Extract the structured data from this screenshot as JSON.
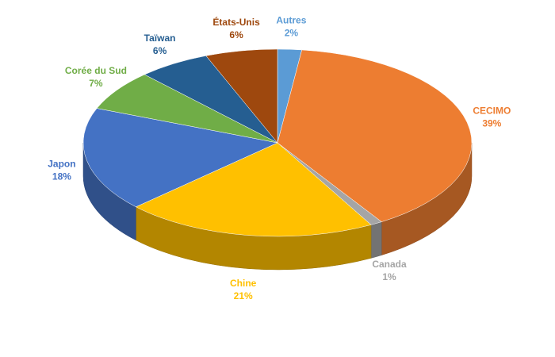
{
  "chart_data": {
    "type": "pie",
    "categories": [
      "Autres",
      "CECIMO",
      "Canada",
      "Chine",
      "Japon",
      "Corée du Sud",
      "Taïwan",
      "États-Unis"
    ],
    "values": [
      2,
      39,
      1,
      21,
      18,
      7,
      6,
      6
    ],
    "value_labels": [
      "2%",
      "39%",
      "1%",
      "21%",
      "18%",
      "7%",
      "6%",
      "6%"
    ],
    "colors": [
      "#5b9bd5",
      "#ed7d31",
      "#a5a5a5",
      "#ffc000",
      "#4472c4",
      "#70ad47",
      "#255e91",
      "#9e480e"
    ]
  }
}
